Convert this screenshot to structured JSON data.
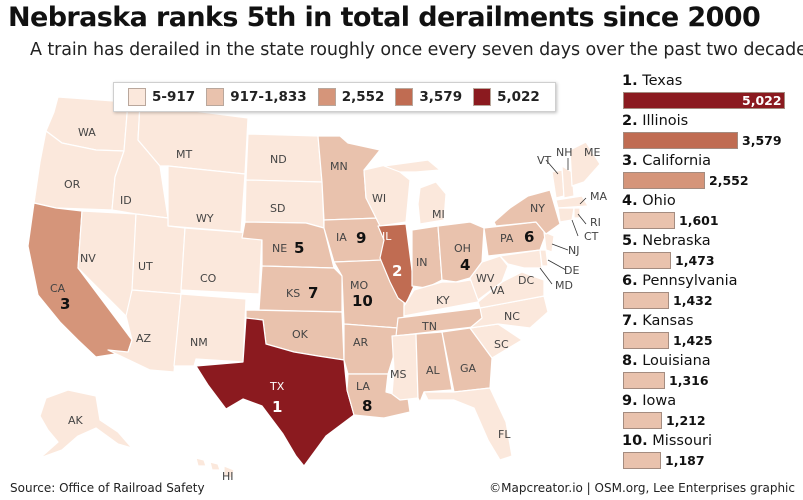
{
  "title": "Nebraska ranks 5th in total derailments since 2000",
  "subtitle": "A train has derailed in the state roughly once every seven days over the past two decades.",
  "legend": [
    {
      "label": "5-917",
      "color": "#fbe8dc"
    },
    {
      "label": "917-1,833",
      "color": "#e9c2ad"
    },
    {
      "label": "2,552",
      "color": "#d5957a"
    },
    {
      "label": "3,579",
      "color": "#c06c52"
    },
    {
      "label": "5,022",
      "color": "#8b1a1f"
    }
  ],
  "rankings": [
    {
      "rank": "1.",
      "name": "Texas",
      "value": "5,022",
      "amount": 5022,
      "color": "#8b1a1f"
    },
    {
      "rank": "2.",
      "name": "Illinois",
      "value": "3,579",
      "amount": 3579,
      "color": "#c06c52"
    },
    {
      "rank": "3.",
      "name": "California",
      "value": "2,552",
      "amount": 2552,
      "color": "#d5957a"
    },
    {
      "rank": "4.",
      "name": "Ohio",
      "value": "1,601",
      "amount": 1601,
      "color": "#e9c2ad"
    },
    {
      "rank": "5.",
      "name": "Nebraska",
      "value": "1,473",
      "amount": 1473,
      "color": "#e9c2ad"
    },
    {
      "rank": "6.",
      "name": "Pennsylvania",
      "value": "1,432",
      "amount": 1432,
      "color": "#e9c2ad"
    },
    {
      "rank": "7.",
      "name": "Kansas",
      "value": "1,425",
      "amount": 1425,
      "color": "#e9c2ad"
    },
    {
      "rank": "8.",
      "name": "Louisiana",
      "value": "1,316",
      "amount": 1316,
      "color": "#e9c2ad"
    },
    {
      "rank": "9.",
      "name": "Iowa",
      "value": "1,212",
      "amount": 1212,
      "color": "#e9c2ad"
    },
    {
      "rank": "10.",
      "name": "Missouri",
      "value": "1,187",
      "amount": 1187,
      "color": "#e9c2ad"
    }
  ],
  "map": {
    "state_labels": [
      "WA",
      "OR",
      "CA",
      "NV",
      "ID",
      "MT",
      "WY",
      "UT",
      "AZ",
      "CO",
      "NM",
      "ND",
      "SD",
      "NE",
      "KS",
      "OK",
      "TX",
      "MN",
      "IA",
      "MO",
      "AR",
      "LA",
      "WI",
      "IL",
      "MI",
      "IN",
      "OH",
      "KY",
      "TN",
      "MS",
      "AL",
      "GA",
      "FL",
      "SC",
      "NC",
      "VA",
      "WV",
      "PA",
      "NY",
      "VT",
      "NH",
      "ME",
      "MA",
      "RI",
      "CT",
      "NJ",
      "DE",
      "MD",
      "DC",
      "AK",
      "HI"
    ],
    "rank_labels": {
      "TX": "1",
      "IL": "2",
      "CA": "3",
      "OH": "4",
      "NE": "5",
      "PA": "6",
      "KS": "7",
      "LA": "8",
      "IA": "9",
      "MO": "10"
    }
  },
  "colors": {
    "low": "#fbe8dc",
    "mid": "#e9c2ad",
    "ca": "#d5957a",
    "il": "#c06c52",
    "tx": "#8b1a1f",
    "border": "#ffffff",
    "water": "#ffffff"
  },
  "source": "Source: Office of Railroad Safety",
  "credit": "©Mapcreator.io | OSM.org, Lee Enterprises graphic"
}
